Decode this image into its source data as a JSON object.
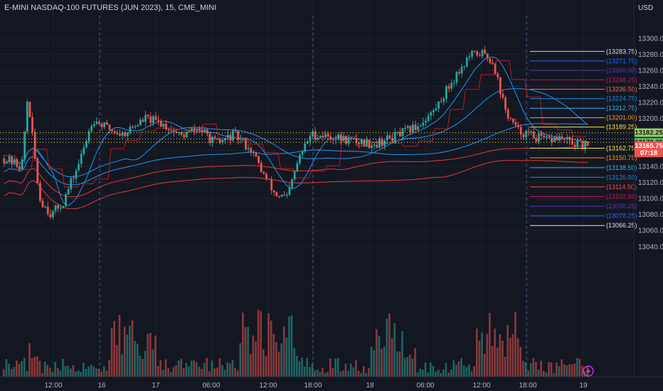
{
  "chart_title": "E-MINI NASDAQ-100 FUTURES (JUN 2023), 15, CME_MINI",
  "currency": "USD",
  "colors": {
    "background": "#131722",
    "grid": "#1e222d",
    "bull": "#26a69a",
    "bear": "#ef5350",
    "ma_blue": "#2196f3",
    "ma_red": "#e53935",
    "vwap_red": "#b71c1c",
    "dotted_yellow": "#ffeb3b",
    "dotted_white": "#d1d4dc"
  },
  "chart_data": {
    "type": "candlestick",
    "symbol": "E-MINI NASDAQ-100 FUTURES (JUN 2023)",
    "interval": "15",
    "exchange": "CME_MINI",
    "x_ticks": [
      "12:00",
      "16",
      "17",
      "06:00",
      "12:00",
      "18:00",
      "18",
      "06:00",
      "12:00",
      "18:00",
      "19"
    ],
    "y_ticks": [
      13300,
      13280,
      13260,
      13240,
      13220,
      13200,
      13180,
      13160,
      13140,
      13120,
      13100,
      13080,
      13060,
      13040
    ],
    "ylim": [
      13030,
      13310
    ],
    "price_path": [
      [
        0,
        13150
      ],
      [
        3,
        13140
      ],
      [
        4,
        13228
      ],
      [
        6,
        13100
      ],
      [
        8,
        13080
      ],
      [
        10,
        13095
      ],
      [
        13,
        13150
      ],
      [
        15,
        13200
      ],
      [
        17,
        13190
      ],
      [
        20,
        13180
      ],
      [
        24,
        13200
      ],
      [
        27,
        13193
      ],
      [
        30,
        13178
      ],
      [
        33,
        13188
      ],
      [
        36,
        13168
      ],
      [
        39,
        13180
      ],
      [
        42,
        13160
      ],
      [
        44,
        13130
      ],
      [
        46,
        13105
      ],
      [
        48,
        13100
      ],
      [
        50,
        13150
      ],
      [
        52,
        13180
      ],
      [
        55,
        13178
      ],
      [
        59,
        13172
      ],
      [
        63,
        13168
      ],
      [
        67,
        13180
      ],
      [
        70,
        13190
      ],
      [
        73,
        13210
      ],
      [
        75,
        13235
      ],
      [
        77,
        13258
      ],
      [
        79,
        13278
      ],
      [
        81,
        13282
      ],
      [
        83,
        13270
      ],
      [
        85,
        13210
      ],
      [
        87,
        13185
      ],
      [
        89,
        13180
      ],
      [
        92,
        13172
      ],
      [
        94,
        13176
      ],
      [
        96,
        13170
      ],
      [
        98,
        13166
      ],
      [
        99,
        13165.75
      ]
    ],
    "last_price": 13165.75,
    "countdown": "07:18",
    "price_tags": [
      {
        "value": 13182.25,
        "label": "13182.25",
        "color": "#9ccc65"
      },
      {
        "value": 13170.25,
        "label": "13170.25",
        "color": "#66bb6a"
      },
      {
        "value": 13165.75,
        "label": "13165.75",
        "color": "#ef5350"
      }
    ],
    "levels": [
      {
        "value": 13283.75,
        "label": "(13283.75)",
        "color": "#e0e0e0"
      },
      {
        "value": 13271.75,
        "label": "(13271.75)",
        "color": "#2962ff"
      },
      {
        "value": 13260.0,
        "label": "(13260.00)",
        "color": "#5e35b1"
      },
      {
        "value": 13248.25,
        "label": "(13248.25)",
        "color": "#c2185b"
      },
      {
        "value": 13236.5,
        "label": "(13236.50)",
        "color": "#ef6c57"
      },
      {
        "value": 13224.75,
        "label": "(13224.75)",
        "color": "#1e88e5"
      },
      {
        "value": 13212.75,
        "label": "(13212.75)",
        "color": "#29b6f6"
      },
      {
        "value": 13201.0,
        "label": "(13201.00)",
        "color": "#ff9800"
      },
      {
        "value": 13189.25,
        "label": "(13189.25)",
        "color": "#ffeb3b"
      },
      {
        "value": 13162.75,
        "label": "(13162.75)",
        "color": "#ffeb3b"
      },
      {
        "value": 13150.75,
        "label": "(13150.75)",
        "color": "#ff9800"
      },
      {
        "value": 13138.5,
        "label": "(13138.50)",
        "color": "#29b6f6"
      },
      {
        "value": 13126.5,
        "label": "(13126.50)",
        "color": "#1e88e5"
      },
      {
        "value": 13114.5,
        "label": "(13114.50)",
        "color": "#ef5350"
      },
      {
        "value": 13102.5,
        "label": "(13102.50)",
        "color": "#c2185b"
      },
      {
        "value": 13090.25,
        "label": "(13090.25)",
        "color": "#5e35b1"
      },
      {
        "value": 13078.25,
        "label": "(13078.25)",
        "color": "#2962ff"
      },
      {
        "value": 13066.25,
        "label": "(13066.25)",
        "color": "#e0e0e0"
      }
    ],
    "dotted_lines": [
      {
        "value": 13182.25,
        "color": "#ffeb3b"
      },
      {
        "value": 13174.5,
        "color": "#d1d4dc"
      },
      {
        "value": 13170.25,
        "color": "#ffeb3b"
      }
    ]
  }
}
